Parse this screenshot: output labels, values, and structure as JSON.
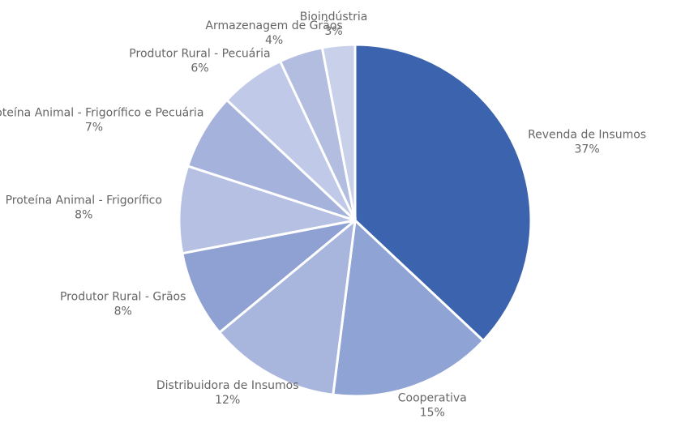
{
  "chart_data": {
    "type": "pie",
    "categories": [
      "Revenda de Insumos",
      "Cooperativa",
      "Distribuidora de Insumos",
      "Produtor Rural - Grãos",
      "Proteína Animal - Frigorífico",
      "Proteína Animal - Frigorífico e Pecuária",
      "Produtor Rural - Pecuária",
      "Armazenagem de Grãos",
      "Bioindústria"
    ],
    "values": [
      37,
      15,
      12,
      8,
      8,
      7,
      6,
      4,
      3
    ],
    "value_labels": [
      "37%",
      "15%",
      "12%",
      "8%",
      "8%",
      "7%",
      "6%",
      "4%",
      "3%"
    ],
    "colors": [
      "#3c63ad",
      "#8fa3d4",
      "#a8b5dc",
      "#8fa0d2",
      "#b5c0e3",
      "#a5b2db",
      "#c0cae8",
      "#b3bde0",
      "#c8d0ea"
    ]
  }
}
